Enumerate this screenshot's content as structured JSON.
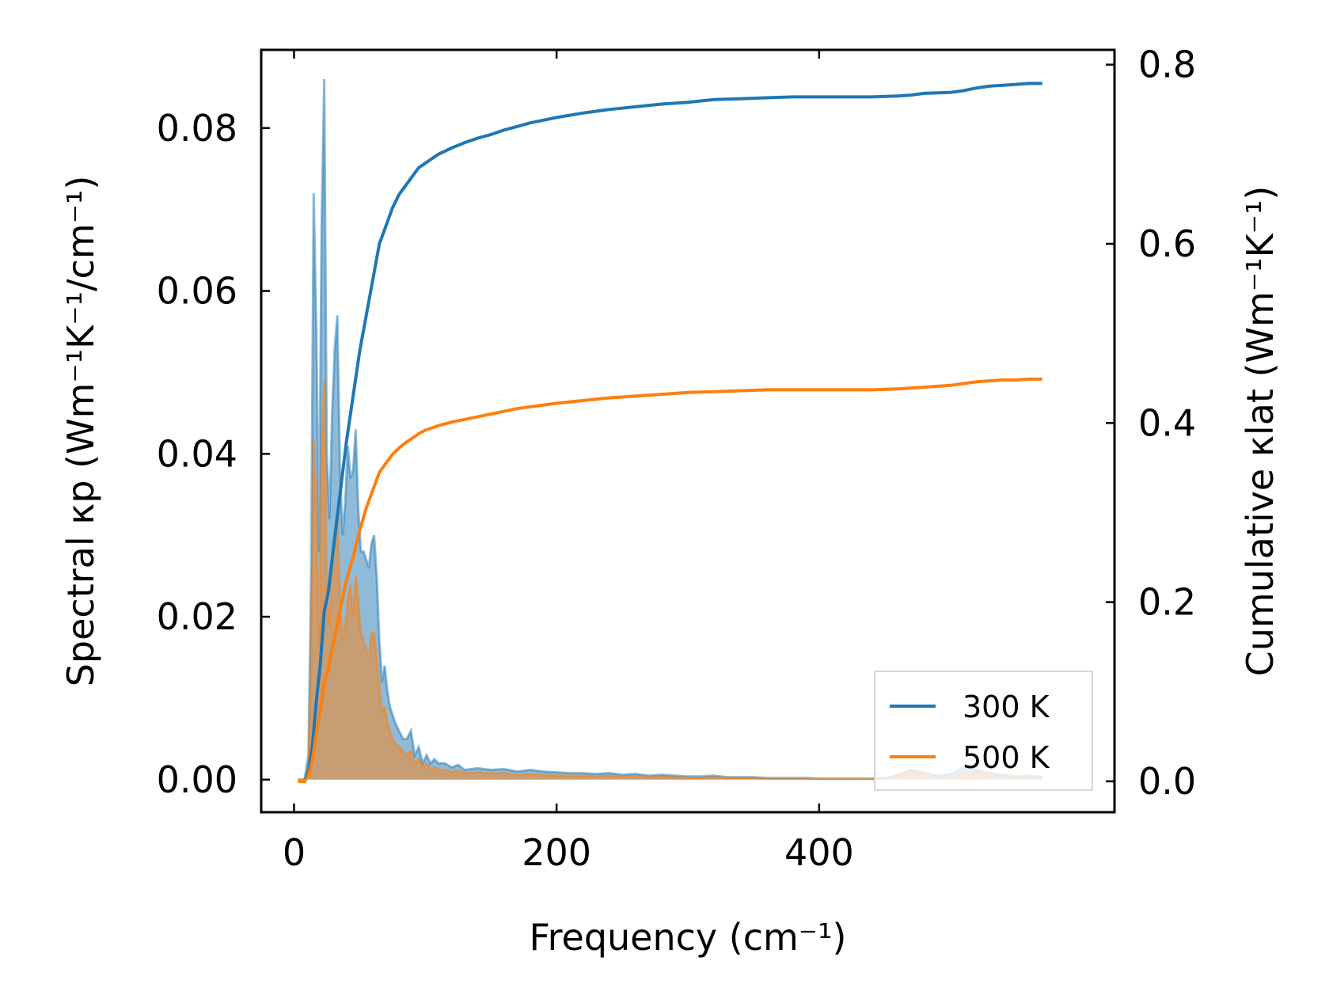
{
  "chart_data": {
    "type": "area",
    "xlabel": "Frequency (cm⁻¹)",
    "ylabel": "Spectral κp (Wm⁻¹K⁻¹/cm⁻¹)",
    "y2label": "Cumulative κlat (Wm⁻¹K⁻¹)",
    "xlim": [
      -25,
      625
    ],
    "ylim": [
      -0.004,
      0.0896
    ],
    "y2lim": [
      -0.0345,
      0.8165
    ],
    "xticks": [
      0,
      200,
      400
    ],
    "yticks": [
      0.0,
      0.02,
      0.04,
      0.06,
      0.08
    ],
    "y2ticks": [
      0.0,
      0.2,
      0.4,
      0.6,
      0.8
    ],
    "xtick_labels": [
      "0",
      "200",
      "400"
    ],
    "ytick_labels": [
      "0.00",
      "0.02",
      "0.04",
      "0.06",
      "0.08"
    ],
    "y2tick_labels": [
      "0.0",
      "0.2",
      "0.4",
      "0.6",
      "0.8"
    ],
    "grid": false,
    "legend_position": "bottom-right",
    "colors": {
      "300K": "#1f77b4",
      "500K": "#ff7f0e"
    },
    "legend": [
      "300 K",
      "500 K"
    ],
    "series": [
      {
        "name": "300 K",
        "axis": "left",
        "kind": "spectral-filled",
        "x": [
          3,
          8,
          11,
          13,
          15,
          17,
          19,
          21,
          23,
          25,
          27,
          29,
          31,
          33,
          35,
          37,
          39,
          41,
          43,
          45,
          47,
          49,
          51,
          53,
          55,
          57,
          59,
          61,
          63,
          65,
          67,
          69,
          71,
          73,
          75,
          77,
          80,
          83,
          86,
          89,
          92,
          95,
          98,
          101,
          104,
          107,
          110,
          115,
          120,
          125,
          130,
          140,
          150,
          160,
          170,
          180,
          190,
          200,
          210,
          220,
          230,
          240,
          250,
          260,
          270,
          280,
          290,
          300,
          310,
          320,
          330,
          340,
          350,
          360,
          370,
          380,
          390,
          400,
          410,
          420,
          430,
          440,
          450,
          460,
          470,
          480,
          490,
          500,
          510,
          520,
          530,
          540,
          550,
          560,
          570
        ],
        "values": [
          0.0,
          0.0,
          0.003,
          0.025,
          0.072,
          0.055,
          0.028,
          0.068,
          0.086,
          0.04,
          0.032,
          0.045,
          0.053,
          0.057,
          0.038,
          0.03,
          0.034,
          0.041,
          0.037,
          0.038,
          0.043,
          0.033,
          0.028,
          0.028,
          0.027,
          0.026,
          0.029,
          0.03,
          0.025,
          0.017,
          0.012,
          0.014,
          0.011,
          0.009,
          0.008,
          0.007,
          0.006,
          0.005,
          0.005,
          0.006,
          0.003,
          0.004,
          0.002,
          0.003,
          0.002,
          0.0025,
          0.002,
          0.002,
          0.0015,
          0.0018,
          0.0012,
          0.0014,
          0.0012,
          0.0013,
          0.001,
          0.0012,
          0.001,
          0.0009,
          0.0008,
          0.0008,
          0.0007,
          0.0008,
          0.0006,
          0.0007,
          0.0005,
          0.0006,
          0.0005,
          0.0004,
          0.0004,
          0.0005,
          0.0003,
          0.0003,
          0.0003,
          0.0002,
          0.0002,
          0.0002,
          0.0002,
          0.0001,
          0.0001,
          0.0001,
          0.0001,
          0.0001,
          0.0002,
          0.0006,
          0.0012,
          0.0009,
          0.0005,
          0.0007,
          0.0015,
          0.0012,
          0.0008,
          0.0006,
          0.0004,
          0.0005,
          0.0003
        ]
      },
      {
        "name": "500 K",
        "axis": "left",
        "kind": "spectral-filled",
        "x": [
          3,
          8,
          11,
          13,
          15,
          17,
          19,
          21,
          23,
          25,
          27,
          29,
          31,
          33,
          35,
          37,
          39,
          41,
          43,
          45,
          47,
          49,
          51,
          53,
          55,
          57,
          59,
          61,
          63,
          65,
          67,
          69,
          71,
          73,
          75,
          77,
          80,
          83,
          86,
          89,
          92,
          95,
          98,
          101,
          104,
          107,
          110,
          115,
          120,
          125,
          130,
          140,
          150,
          160,
          170,
          180,
          190,
          200,
          210,
          220,
          230,
          240,
          250,
          260,
          270,
          280,
          290,
          300,
          310,
          320,
          330,
          340,
          350,
          360,
          370,
          380,
          390,
          400,
          410,
          420,
          430,
          440,
          450,
          460,
          470,
          480,
          490,
          500,
          510,
          520,
          530,
          540,
          550,
          560,
          570
        ],
        "values": [
          0.0,
          0.0,
          0.0015,
          0.014,
          0.042,
          0.032,
          0.016,
          0.04,
          0.049,
          0.023,
          0.019,
          0.026,
          0.03,
          0.033,
          0.022,
          0.017,
          0.019,
          0.022,
          0.024,
          0.02,
          0.025,
          0.022,
          0.018,
          0.017,
          0.016,
          0.015,
          0.018,
          0.018,
          0.015,
          0.0115,
          0.008,
          0.009,
          0.007,
          0.006,
          0.005,
          0.0045,
          0.004,
          0.0035,
          0.003,
          0.0035,
          0.002,
          0.0025,
          0.0015,
          0.002,
          0.0013,
          0.0015,
          0.0012,
          0.0012,
          0.001,
          0.0011,
          0.0008,
          0.0009,
          0.0008,
          0.0008,
          0.0006,
          0.0007,
          0.0006,
          0.0005,
          0.0005,
          0.0005,
          0.0004,
          0.0005,
          0.0004,
          0.0004,
          0.0003,
          0.0004,
          0.0003,
          0.0002,
          0.0002,
          0.0003,
          0.0002,
          0.0002,
          0.0002,
          0.0001,
          0.0001,
          0.0001,
          0.0001,
          0.0001,
          0.0001,
          0.0001,
          0.0001,
          0.0001,
          0.0001,
          0.0004,
          0.0008,
          0.0006,
          0.0003,
          0.0004,
          0.0009,
          0.0008,
          0.0005,
          0.0004,
          0.0003,
          0.0003,
          0.0002
        ]
      },
      {
        "name": "300 K",
        "axis": "right",
        "kind": "cumulative-line",
        "x": [
          3,
          8,
          11,
          14,
          17,
          20,
          23,
          26,
          30,
          35,
          40,
          45,
          50,
          55,
          60,
          65,
          70,
          75,
          80,
          85,
          90,
          95,
          100,
          110,
          120,
          130,
          140,
          150,
          160,
          170,
          180,
          190,
          200,
          220,
          240,
          260,
          280,
          300,
          320,
          340,
          360,
          380,
          400,
          420,
          440,
          460,
          470,
          480,
          500,
          510,
          520,
          530,
          540,
          550,
          560,
          570
        ],
        "values": [
          0.0,
          0.0,
          0.01,
          0.04,
          0.09,
          0.13,
          0.19,
          0.21,
          0.26,
          0.32,
          0.38,
          0.43,
          0.48,
          0.52,
          0.56,
          0.6,
          0.62,
          0.64,
          0.655,
          0.665,
          0.675,
          0.685,
          0.69,
          0.7,
          0.707,
          0.713,
          0.718,
          0.722,
          0.727,
          0.731,
          0.735,
          0.738,
          0.741,
          0.746,
          0.75,
          0.753,
          0.756,
          0.758,
          0.761,
          0.762,
          0.763,
          0.764,
          0.764,
          0.764,
          0.764,
          0.765,
          0.766,
          0.768,
          0.769,
          0.771,
          0.774,
          0.776,
          0.777,
          0.778,
          0.779,
          0.779
        ]
      },
      {
        "name": "500 K",
        "axis": "right",
        "kind": "cumulative-line",
        "x": [
          3,
          8,
          11,
          14,
          17,
          20,
          23,
          26,
          30,
          35,
          40,
          45,
          50,
          55,
          60,
          65,
          70,
          75,
          80,
          85,
          90,
          95,
          100,
          110,
          120,
          130,
          140,
          150,
          160,
          170,
          180,
          190,
          200,
          220,
          240,
          260,
          280,
          300,
          320,
          340,
          360,
          380,
          400,
          420,
          440,
          460,
          470,
          480,
          500,
          510,
          520,
          530,
          540,
          550,
          560,
          570
        ],
        "values": [
          0.0,
          0.0,
          0.006,
          0.024,
          0.054,
          0.078,
          0.11,
          0.125,
          0.155,
          0.19,
          0.225,
          0.25,
          0.28,
          0.305,
          0.325,
          0.345,
          0.355,
          0.365,
          0.372,
          0.378,
          0.383,
          0.388,
          0.392,
          0.397,
          0.401,
          0.404,
          0.407,
          0.41,
          0.413,
          0.416,
          0.418,
          0.42,
          0.422,
          0.425,
          0.428,
          0.43,
          0.432,
          0.434,
          0.435,
          0.436,
          0.437,
          0.437,
          0.437,
          0.437,
          0.437,
          0.438,
          0.439,
          0.44,
          0.442,
          0.444,
          0.446,
          0.447,
          0.448,
          0.448,
          0.449,
          0.449
        ]
      }
    ]
  }
}
